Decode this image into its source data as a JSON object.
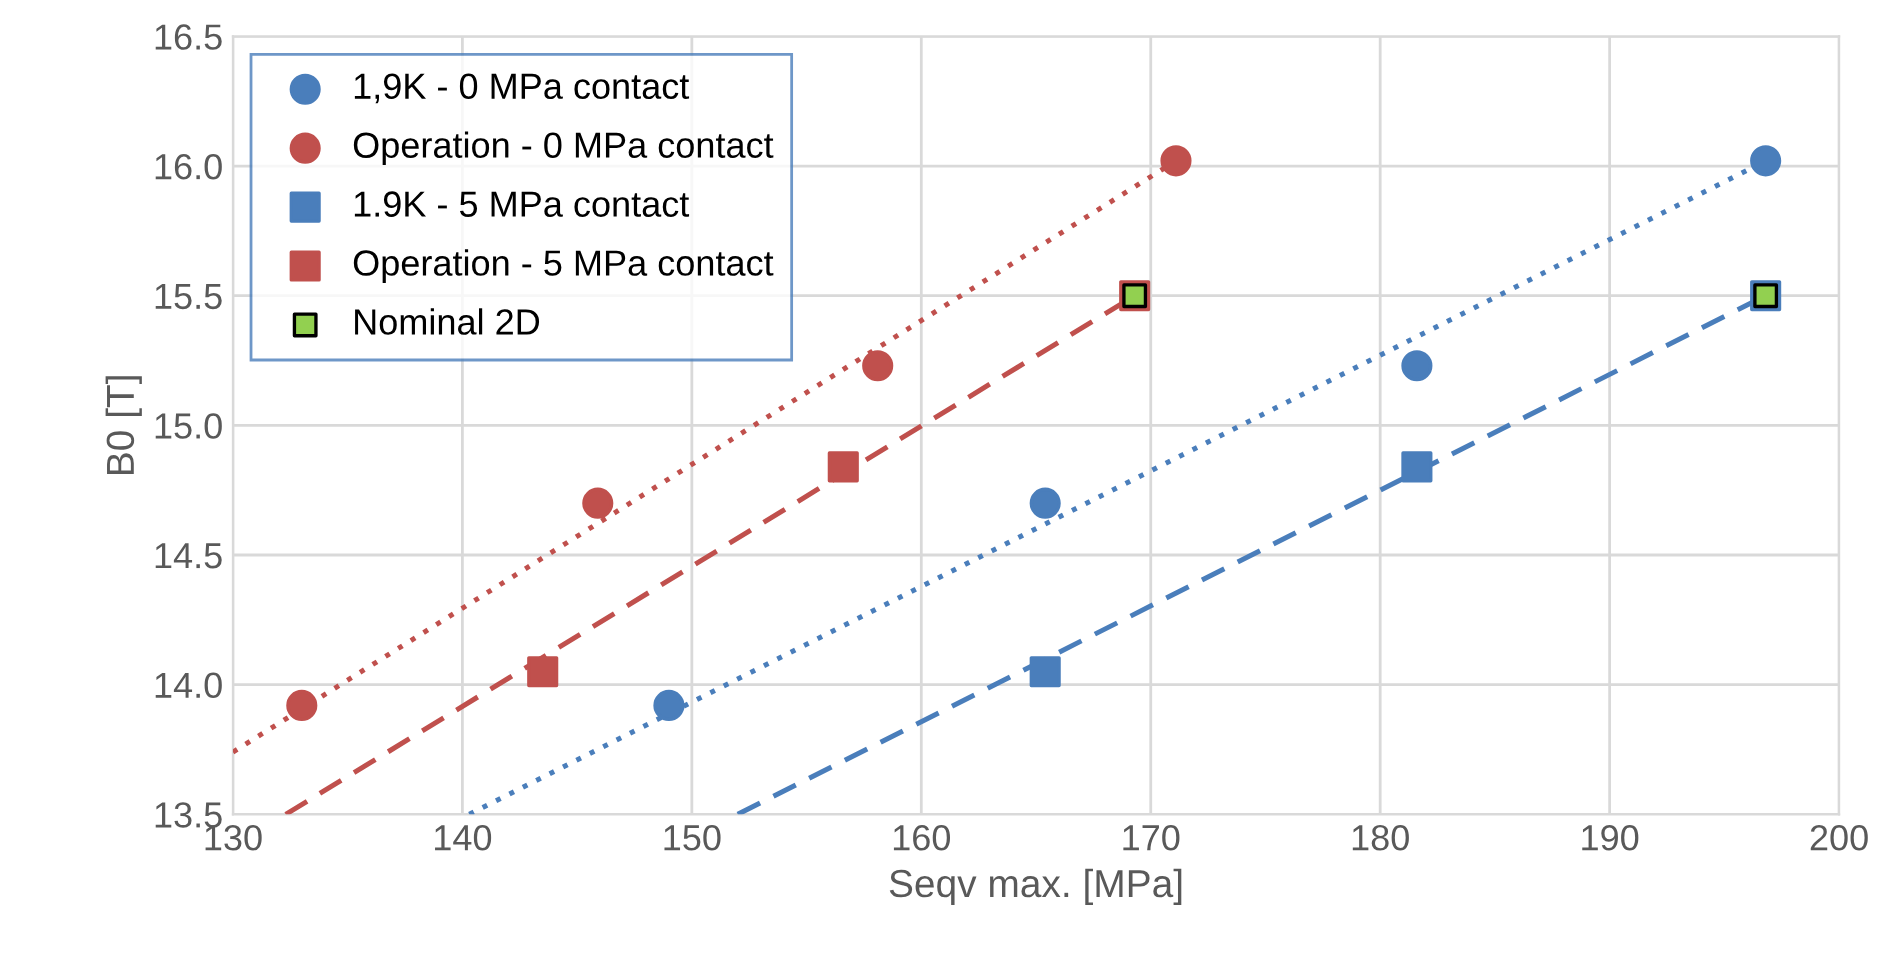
{
  "chart_data": {
    "type": "scatter",
    "xlabel": "Seqv max. [MPa]",
    "ylabel": "B0 [T]",
    "xlim": [
      130,
      200
    ],
    "xticks": [
      130,
      140,
      150,
      160,
      170,
      180,
      190,
      200
    ],
    "ylim": [
      13.5,
      16.5
    ],
    "yticks": [
      13.5,
      {
        "value": 14,
        "label": "14.0"
      },
      14.5,
      {
        "value": 15,
        "label": "15.0"
      },
      15.5,
      {
        "value": 16,
        "label": "16.0"
      },
      16.5
    ],
    "grid": true,
    "legend": "top left",
    "series": [
      {
        "name": "1,9K - 0 MPa contact",
        "color": "#4a7ebb",
        "marker": "circle",
        "x": [
          149,
          165.4,
          181.6,
          196.8
        ],
        "values": [
          13.92,
          14.7,
          15.23,
          16.02
        ]
      },
      {
        "name": "Operation - 0 MPa contact",
        "color": "#c0504d",
        "marker": "circle",
        "x": [
          133,
          145.9,
          158.1,
          171.1
        ],
        "values": [
          13.92,
          14.7,
          15.23,
          16.02
        ]
      },
      {
        "name": "1.9K - 5 MPa contact",
        "color": "#4a7ebb",
        "marker": "square",
        "x": [
          165.4,
          181.6,
          196.8
        ],
        "values": [
          14.05,
          14.84,
          15.5
        ]
      },
      {
        "name": "Operation - 5 MPa contact",
        "color": "#c0504d",
        "marker": "square",
        "x": [
          143.5,
          156.6,
          169.3
        ],
        "values": [
          14.05,
          14.84,
          15.5
        ]
      },
      {
        "name": "Nominal 2D",
        "color": "#92d050",
        "marker": "square",
        "x": [
          169.3,
          196.8
        ],
        "values": [
          15.5,
          15.5
        ]
      },
      {
        "type": "line",
        "color": "#4a7ebb",
        "line_style": "dotted",
        "x": [
          140.3,
          196.8
        ],
        "values": [
          13.5,
          16.02
        ]
      },
      {
        "type": "line",
        "color": "#c0504d",
        "line_style": "dotted",
        "x": [
          130,
          171.1
        ],
        "values": [
          13.74,
          16.02
        ]
      },
      {
        "type": "line",
        "color": "#4a7ebb",
        "line_style": "dashed",
        "x": [
          152,
          196.8
        ],
        "values": [
          13.5,
          15.5
        ]
      },
      {
        "type": "line",
        "color": "#c0504d",
        "line_style": "dashed",
        "x": [
          132.3,
          169.3
        ],
        "values": [
          13.5,
          15.5
        ]
      }
    ]
  }
}
